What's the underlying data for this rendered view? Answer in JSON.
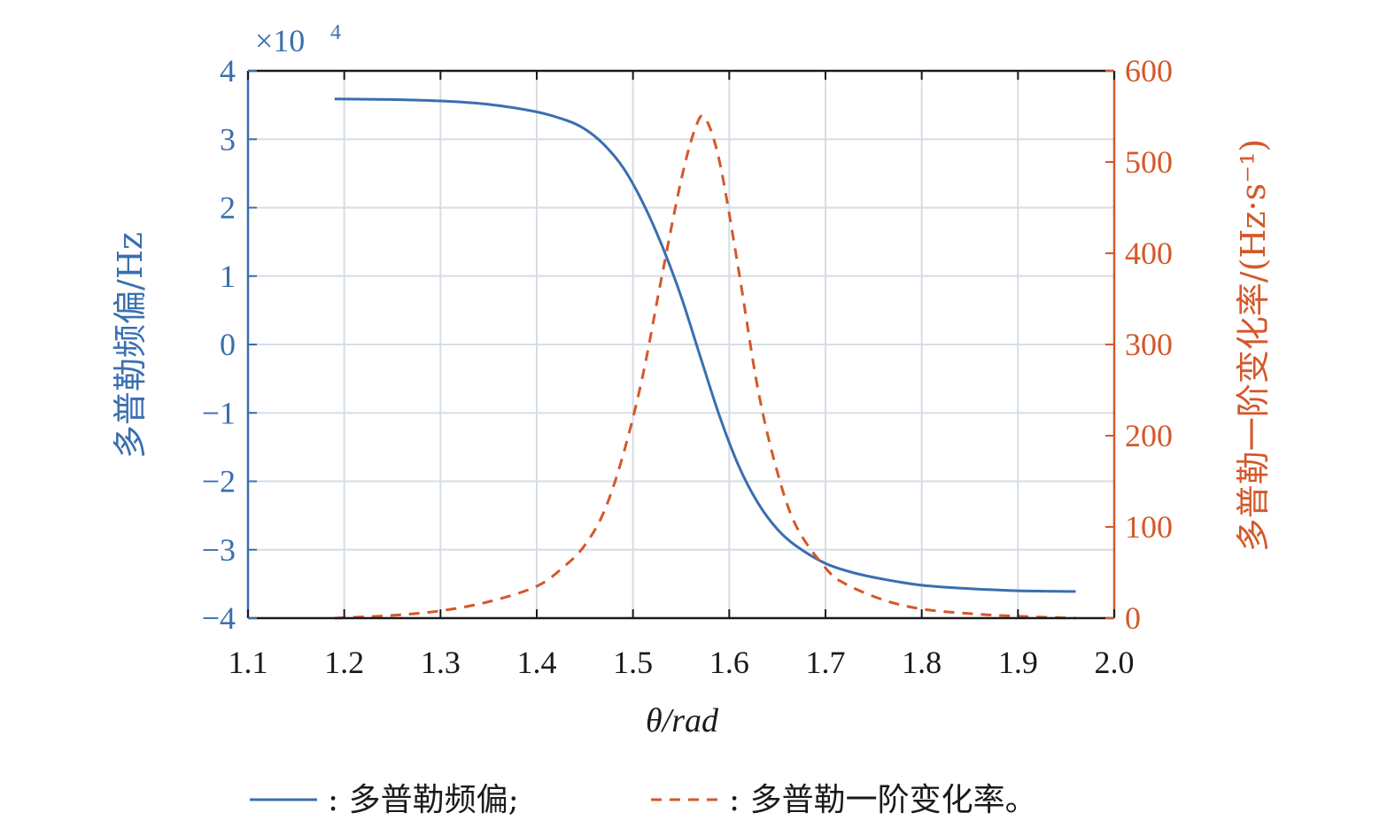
{
  "chart_data": {
    "type": "line",
    "xlabel": "θ/rad",
    "ylabel_left": "多普勒频偏/Hz",
    "ylabel_right": "多普勒一阶变化率/(Hz·s⁻¹)",
    "y_left_multiplier": "×10",
    "y_left_multiplier_exp": "4",
    "xlim": [
      1.1,
      2.0
    ],
    "ylim_left": [
      -4,
      4
    ],
    "ylim_right": [
      0,
      600
    ],
    "x_ticks": [
      "1.1",
      "1.2",
      "1.3",
      "1.4",
      "1.5",
      "1.6",
      "1.7",
      "1.8",
      "1.9",
      "2.0"
    ],
    "y_left_ticks": [
      "−4",
      "−3",
      "−2",
      "−1",
      "0",
      "1",
      "2",
      "3",
      "4"
    ],
    "y_right_ticks": [
      "0",
      "100",
      "200",
      "300",
      "400",
      "500",
      "600"
    ],
    "grid": true,
    "colors": {
      "left": "#3a6fb0",
      "right": "#d4582a",
      "axis": "#1a1a1a",
      "grid": "#d6dde6"
    },
    "series": [
      {
        "name": "多普勒频偏",
        "axis": "left",
        "style": "solid",
        "color": "#3a6fb0",
        "x": [
          1.19,
          1.25,
          1.3,
          1.35,
          1.4,
          1.43,
          1.45,
          1.47,
          1.49,
          1.51,
          1.53,
          1.55,
          1.57,
          1.59,
          1.61,
          1.63,
          1.65,
          1.67,
          1.7,
          1.73,
          1.76,
          1.8,
          1.85,
          1.9,
          1.96
        ],
        "y": [
          3.59,
          3.58,
          3.56,
          3.51,
          3.4,
          3.28,
          3.15,
          2.92,
          2.58,
          2.08,
          1.45,
          0.7,
          -0.18,
          -1.05,
          -1.78,
          -2.32,
          -2.7,
          -2.95,
          -3.2,
          -3.34,
          -3.43,
          -3.52,
          -3.57,
          -3.6,
          -3.61
        ]
      },
      {
        "name": "多普勒一阶变化率",
        "axis": "right",
        "style": "dashed",
        "color": "#d4582a",
        "x": [
          1.19,
          1.25,
          1.3,
          1.35,
          1.4,
          1.43,
          1.45,
          1.47,
          1.49,
          1.51,
          1.53,
          1.55,
          1.565,
          1.575,
          1.59,
          1.61,
          1.63,
          1.65,
          1.67,
          1.7,
          1.72,
          1.76,
          1.8,
          1.85,
          1.9,
          1.96
        ],
        "y": [
          0,
          3,
          8,
          18,
          35,
          58,
          80,
          117,
          180,
          265,
          375,
          480,
          538,
          548,
          500,
          380,
          250,
          160,
          100,
          55,
          38,
          20,
          10,
          5,
          2,
          0
        ]
      }
    ]
  },
  "legend": {
    "items": [
      {
        "style": "solid",
        "color": "#3a6fb0",
        "label": ": 多普勒频偏;"
      },
      {
        "style": "dashed",
        "color": "#d4582a",
        "label": ": 多普勒一阶变化率。"
      }
    ]
  }
}
